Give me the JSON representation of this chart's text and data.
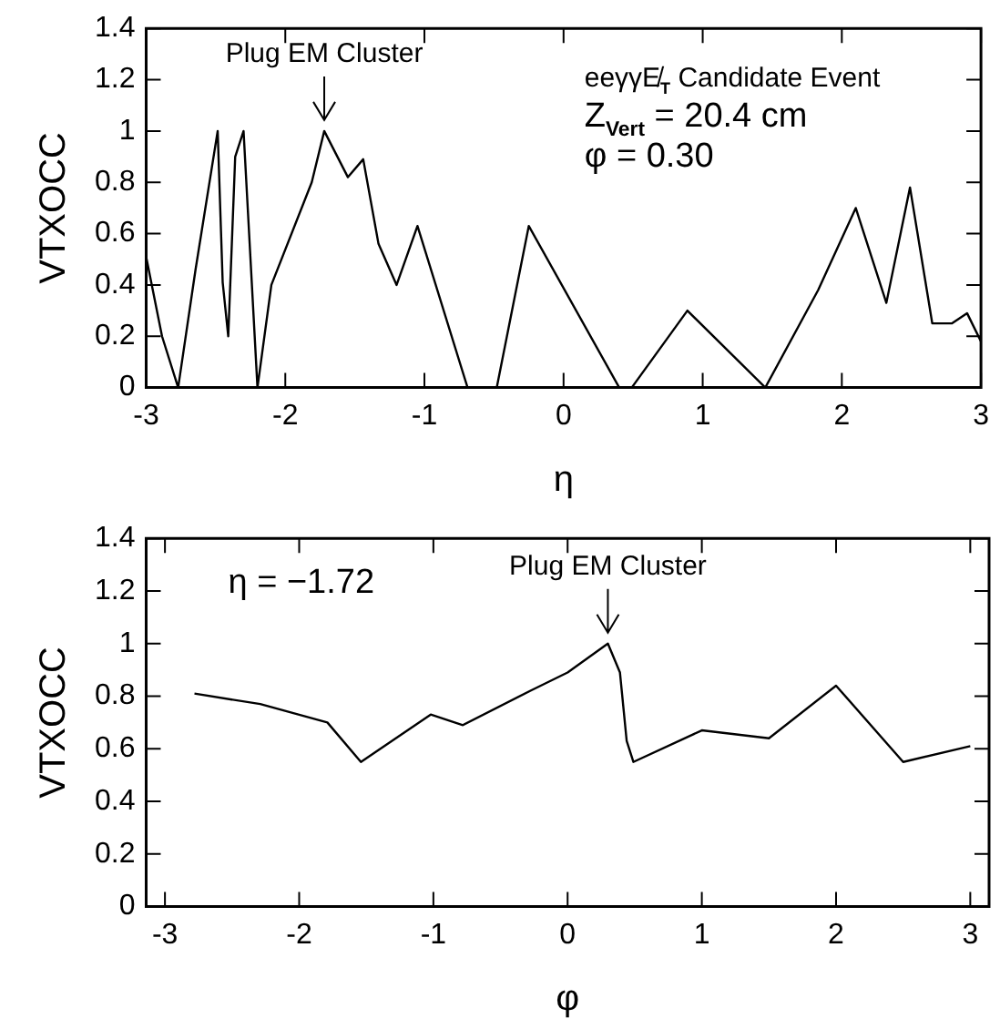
{
  "chart_data": [
    {
      "type": "line",
      "xlabel": "η",
      "ylabel": "VTXOCC",
      "color": "#000000",
      "x": [
        -3,
        -2.886,
        -2.77,
        -2.645,
        -2.486,
        -2.45,
        -2.41,
        -2.36,
        -2.3,
        -2.2,
        -2.1,
        -1.81,
        -1.72,
        -1.55,
        -1.44,
        -1.33,
        -1.2,
        -1.05,
        -0.69,
        -0.48,
        -0.25,
        0.4,
        0.49,
        0.89,
        1.45,
        1.83,
        2.1,
        2.32,
        2.49,
        2.65,
        2.79,
        2.9,
        3.0
      ],
      "values": [
        0.51,
        0.2,
        0,
        0.46,
        1.0,
        0.41,
        0.2,
        0.9,
        1.0,
        0,
        0.4,
        0.8,
        1.0,
        0.82,
        0.89,
        0.56,
        0.4,
        0.63,
        0,
        0,
        0.63,
        0,
        0,
        0.3,
        0,
        0.38,
        0.7,
        0.33,
        0.78,
        0.25,
        0.25,
        0.29,
        0.18
      ],
      "xlim": [
        -3,
        3
      ],
      "xticks": [
        -3,
        -2,
        -1,
        0,
        1,
        2,
        3
      ],
      "ylim": [
        0,
        1.4
      ],
      "yticks": [
        0,
        0.2,
        0.4,
        0.6,
        0.8,
        1,
        1.2,
        1.4
      ],
      "annotations": [
        {
          "text": "Plug EM Cluster",
          "x": -1.72,
          "y": 1.0
        },
        "eeγγE̸$_{T}$ Candidate Event",
        "Z$_{Vert}$ = 20.4 cm",
        "φ = 0.30"
      ]
    },
    {
      "type": "line",
      "xlabel": "φ",
      "ylabel": "VTXOCC",
      "color": "#000000",
      "x": [
        -2.78,
        -2.29,
        -1.79,
        -1.54,
        -1.02,
        -0.78,
        -0.28,
        0.0,
        0.3,
        0.39,
        0.44,
        0.49,
        1.0,
        1.5,
        2.0,
        2.5,
        3.0
      ],
      "values": [
        0.81,
        0.77,
        0.7,
        0.55,
        0.73,
        0.69,
        0.82,
        0.89,
        1.0,
        0.89,
        0.63,
        0.55,
        0.67,
        0.64,
        0.84,
        0.55,
        0.61
      ],
      "xlim": [
        -3.14,
        3.14
      ],
      "xticks": [
        -3,
        -2,
        -1,
        0,
        1,
        2,
        3
      ],
      "ylim": [
        0,
        1.4
      ],
      "yticks": [
        0,
        0.2,
        0.4,
        0.6,
        0.8,
        1,
        1.2,
        1.4
      ],
      "annotations": [
        {
          "text": "Plug EM Cluster",
          "x": 0.3,
          "y": 1.0
        },
        "η = −1.72"
      ]
    }
  ]
}
